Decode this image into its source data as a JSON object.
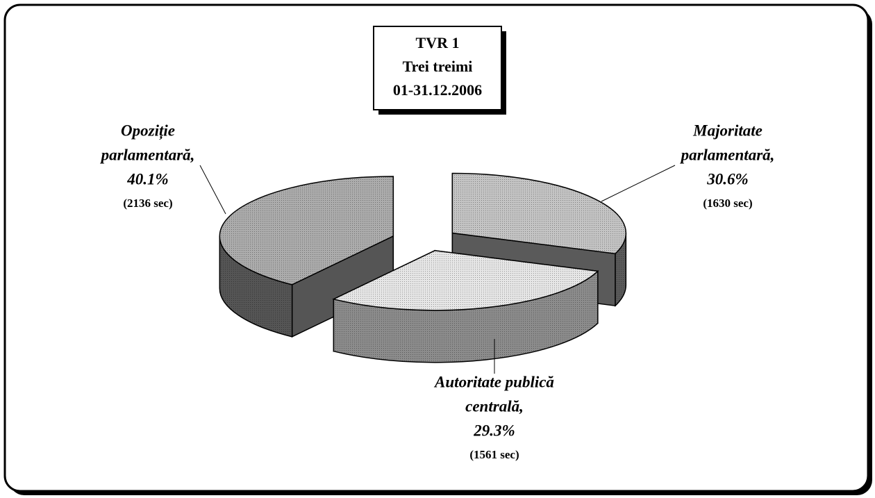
{
  "chart_data": {
    "type": "pie",
    "title": "TVR 1",
    "subtitle": [
      "Trei treimi",
      "01-31.12.2006"
    ],
    "categories": [
      "Majoritate parlamentară,",
      "Autoritate publică centrală,",
      "Opoziție parlamentară,"
    ],
    "values": [
      30.6,
      29.3,
      40.1
    ],
    "value_labels": [
      "30.6%",
      "29.3%",
      "40.1%"
    ],
    "seconds": [
      1630,
      1561,
      2136
    ],
    "seconds_labels": [
      "(1630 sec)",
      "(1561 sec)",
      "(2136 sec)"
    ],
    "colors": [
      "#c4c4c4",
      "#e6e6e6",
      "#acacac"
    ],
    "side_colors": [
      "#5a5a5a",
      "#8c8c8c",
      "#555555"
    ]
  }
}
